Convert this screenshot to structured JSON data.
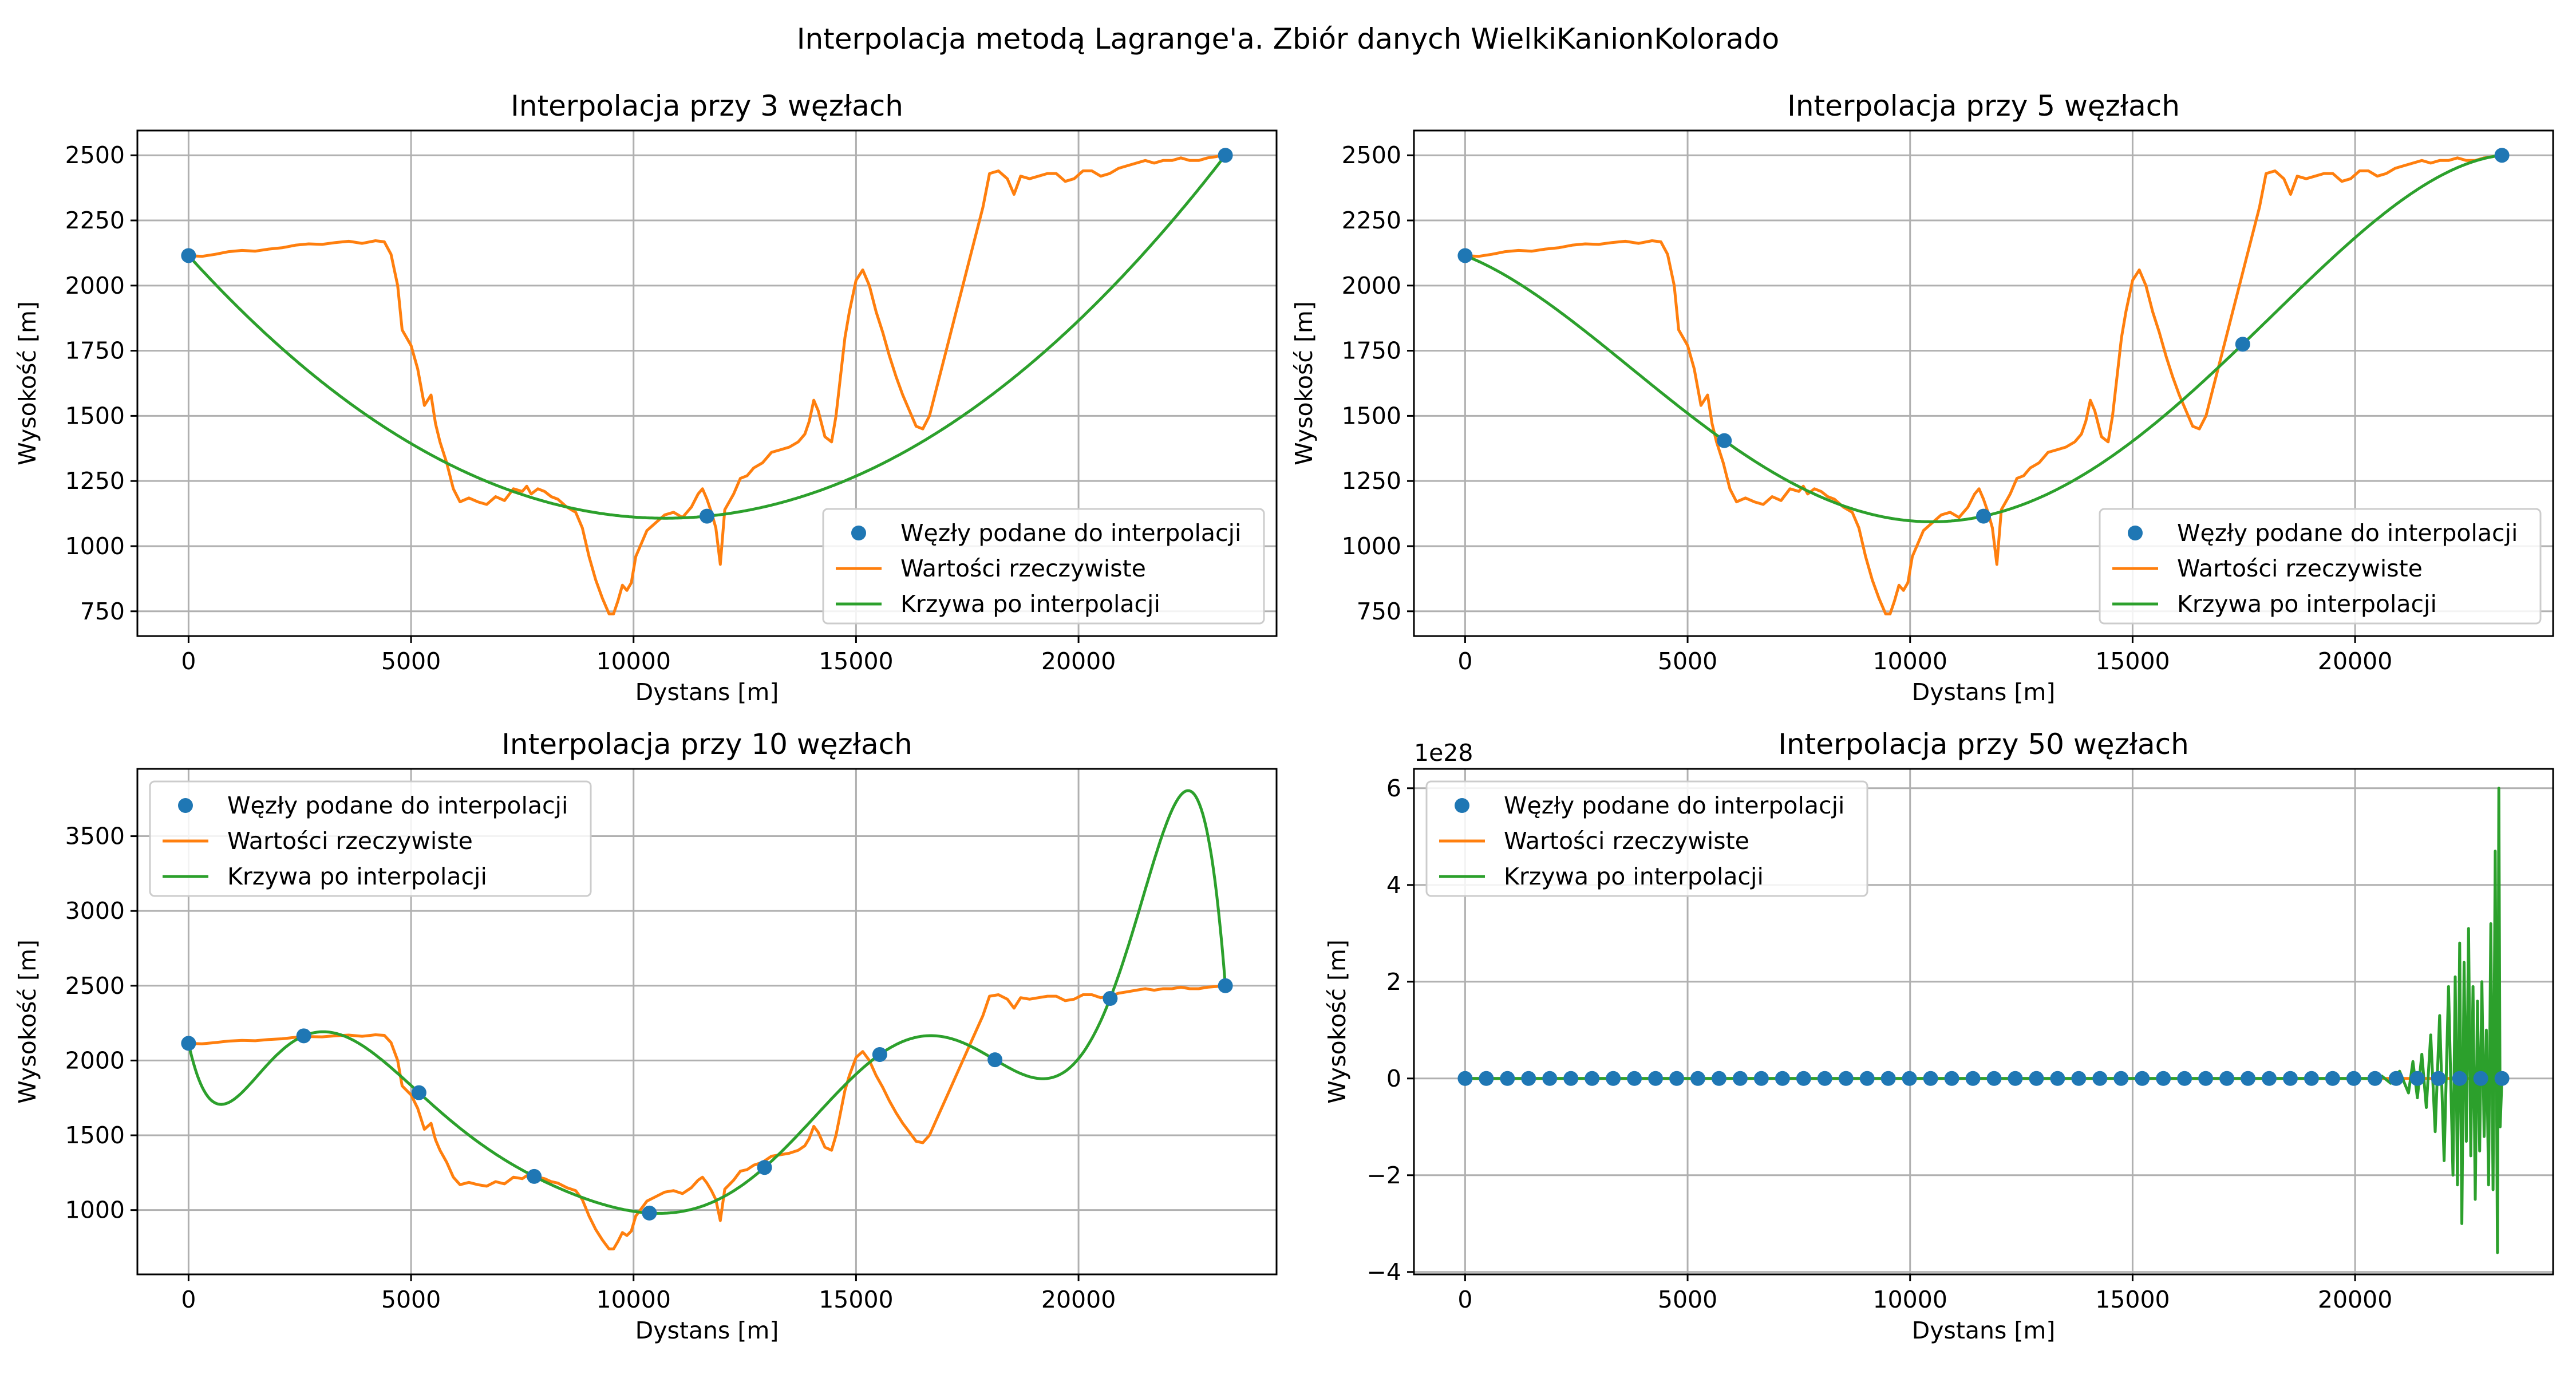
{
  "suptitle": "Interpolacja metodą Lagrange'a. Zbiór danych WielkiKanionKolorado",
  "colors": {
    "nodes": "#1f77b4",
    "real": "#ff7f0e",
    "interp": "#2ca02c",
    "grid": "#b0b0b0"
  },
  "real_profile": {
    "x": [
      0,
      300,
      600,
      900,
      1200,
      1500,
      1800,
      2100,
      2400,
      2700,
      3000,
      3300,
      3600,
      3900,
      4200,
      4400,
      4550,
      4700,
      4800,
      5000,
      5150,
      5300,
      5450,
      5550,
      5650,
      5800,
      5950,
      6100,
      6300,
      6500,
      6700,
      6900,
      7100,
      7300,
      7500,
      7600,
      7700,
      7850,
      8000,
      8150,
      8300,
      8500,
      8700,
      8850,
      9000,
      9150,
      9300,
      9450,
      9550,
      9650,
      9750,
      9850,
      9950,
      10050,
      10150,
      10300,
      10500,
      10700,
      10900,
      11100,
      11300,
      11450,
      11550,
      11650,
      11750,
      11850,
      11950,
      12050,
      12150,
      12250,
      12400,
      12550,
      12700,
      12900,
      13100,
      13300,
      13500,
      13700,
      13850,
      13950,
      14050,
      14150,
      14300,
      14450,
      14550,
      14650,
      14750,
      14850,
      15000,
      15150,
      15300,
      15450,
      15600,
      15750,
      15900,
      16050,
      16200,
      16350,
      16500,
      16650,
      16800,
      16950,
      17100,
      17250,
      17400,
      17550,
      17700,
      17850,
      18000,
      18200,
      18400,
      18550,
      18700,
      18900,
      19100,
      19300,
      19500,
      19700,
      19900,
      20100,
      20300,
      20500,
      20700,
      20900,
      21100,
      21300,
      21500,
      21700,
      21900,
      22100,
      22300,
      22500,
      22700,
      22900,
      23100,
      23200,
      23300
    ],
    "y": [
      2115,
      2112,
      2120,
      2130,
      2135,
      2132,
      2140,
      2145,
      2155,
      2160,
      2158,
      2165,
      2170,
      2162,
      2172,
      2168,
      2120,
      2000,
      1830,
      1770,
      1680,
      1540,
      1580,
      1470,
      1400,
      1320,
      1220,
      1170,
      1185,
      1170,
      1160,
      1190,
      1175,
      1220,
      1210,
      1230,
      1200,
      1220,
      1210,
      1190,
      1180,
      1150,
      1130,
      1070,
      960,
      870,
      800,
      740,
      740,
      790,
      850,
      830,
      860,
      960,
      1000,
      1060,
      1090,
      1120,
      1130,
      1110,
      1150,
      1200,
      1220,
      1180,
      1130,
      1070,
      930,
      1140,
      1170,
      1200,
      1260,
      1270,
      1300,
      1320,
      1360,
      1370,
      1380,
      1400,
      1430,
      1480,
      1560,
      1520,
      1420,
      1400,
      1500,
      1650,
      1800,
      1900,
      2020,
      2060,
      2000,
      1900,
      1820,
      1730,
      1650,
      1580,
      1520,
      1460,
      1450,
      1500,
      1600,
      1700,
      1800,
      1900,
      2000,
      2100,
      2200,
      2300,
      2430,
      2440,
      2410,
      2350,
      2420,
      2410,
      2420,
      2430,
      2430,
      2400,
      2410,
      2440,
      2440,
      2420,
      2430,
      2450,
      2460,
      2470,
      2480,
      2470,
      2480,
      2480,
      2490,
      2480,
      2480,
      2490,
      2495,
      2500,
      2500
    ]
  },
  "chart_data": [
    {
      "type": "line",
      "title": "Interpolacja przy 3 węzłach",
      "xlabel": "Dystans [m]",
      "ylabel": "Wysokość [m]",
      "xlim": [
        -1150,
        24450
      ],
      "ylim": [
        655,
        2595
      ],
      "xticks": [
        "0",
        "5000",
        "10000",
        "15000",
        "20000"
      ],
      "yticks": [
        "750",
        "1000",
        "1250",
        "1500",
        "1750",
        "2000",
        "2250",
        "2500"
      ],
      "legend_loc": "lower-right",
      "nodes": {
        "x": [
          0,
          11650,
          23300
        ],
        "y": [
          2115,
          1115,
          2500
        ]
      },
      "series": [
        {
          "name": "Węzły podane do interpolacji",
          "kind": "nodes"
        },
        {
          "name": "Wartości rzeczywiste",
          "kind": "real"
        },
        {
          "name": "Krzywa po interpolacji",
          "kind": "interp"
        }
      ]
    },
    {
      "type": "line",
      "title": "Interpolacja przy 5 węzłach",
      "xlabel": "Dystans [m]",
      "ylabel": "Wysokość [m]",
      "xlim": [
        -1150,
        24450
      ],
      "ylim": [
        655,
        2595
      ],
      "xticks": [
        "0",
        "5000",
        "10000",
        "15000",
        "20000"
      ],
      "yticks": [
        "750",
        "1000",
        "1250",
        "1500",
        "1750",
        "2000",
        "2250",
        "2500"
      ],
      "legend_loc": "lower-right",
      "nodes": {
        "x": [
          0,
          5825,
          11650,
          17475,
          23300
        ],
        "y": [
          2115,
          1405,
          1115,
          1775,
          2500
        ]
      },
      "series": [
        {
          "name": "Węzły podane do interpolacji",
          "kind": "nodes"
        },
        {
          "name": "Wartości rzeczywiste",
          "kind": "real"
        },
        {
          "name": "Krzywa po interpolacji",
          "kind": "interp"
        }
      ]
    },
    {
      "type": "line",
      "title": "Interpolacja przy 10 węzłach",
      "xlabel": "Dystans [m]",
      "ylabel": "Wysokość [m]",
      "xlim": [
        -1150,
        24450
      ],
      "ylim": [
        570,
        3950
      ],
      "xticks": [
        "0",
        "5000",
        "10000",
        "15000",
        "20000"
      ],
      "yticks": [
        "1000",
        "1500",
        "2000",
        "2500",
        "3000",
        "3500"
      ],
      "legend_loc": "upper-left",
      "nodes": {
        "x": [
          0,
          2589,
          5178,
          7767,
          10356,
          12944,
          15533,
          18122,
          20711,
          23300
        ],
        "y": [
          2115,
          2165,
          1785,
          1225,
          980,
          1285,
          2040,
          2005,
          2415,
          2500
        ]
      },
      "series": [
        {
          "name": "Węzły podane do interpolacji",
          "kind": "nodes"
        },
        {
          "name": "Wartości rzeczywiste",
          "kind": "real"
        },
        {
          "name": "Krzywa po interpolacji",
          "kind": "interp"
        }
      ]
    },
    {
      "type": "line",
      "title": "Interpolacja przy 50 węzłach",
      "xlabel": "Dystans [m]",
      "ylabel": "Wysokość [m]",
      "offset_label": "1e28",
      "xlim": [
        -1150,
        24450
      ],
      "ylim": [
        -4.05,
        6.4
      ],
      "xticks": [
        "0",
        "5000",
        "10000",
        "15000",
        "20000"
      ],
      "yticks": [
        "−4",
        "−2",
        "0",
        "2",
        "4",
        "6"
      ],
      "legend_loc": "upper-left",
      "nodes": {
        "count": 50,
        "x_start": 0,
        "x_end": 23300,
        "y": 0
      },
      "oscillation": {
        "x": [
          20400,
          20600,
          20800,
          21000,
          21200,
          21300,
          21400,
          21500,
          21600,
          21700,
          21800,
          21900,
          22000,
          22100,
          22200,
          22250,
          22300,
          22350,
          22400,
          22450,
          22500,
          22550,
          22600,
          22650,
          22700,
          22750,
          22800,
          22850,
          22900,
          22950,
          23000,
          23050,
          23100,
          23150,
          23200,
          23230,
          23260,
          23300
        ],
        "y": [
          0,
          0.05,
          -0.1,
          0.15,
          -0.3,
          0.35,
          -0.4,
          0.5,
          -0.6,
          0.9,
          -1.1,
          1.3,
          -1.7,
          1.9,
          -2.0,
          2.1,
          -2.2,
          2.8,
          -3.0,
          2.4,
          -1.3,
          3.1,
          -1.6,
          1.9,
          -2.5,
          1.6,
          -1.5,
          2.0,
          -1.2,
          1.0,
          -2.2,
          3.2,
          -2.3,
          4.7,
          -3.6,
          6.0,
          -1.0,
          0
        ]
      },
      "series": [
        {
          "name": "Węzły podane do interpolacji",
          "kind": "nodes"
        },
        {
          "name": "Wartości rzeczywiste",
          "kind": "real"
        },
        {
          "name": "Krzywa po interpolacji",
          "kind": "interp"
        }
      ]
    }
  ]
}
